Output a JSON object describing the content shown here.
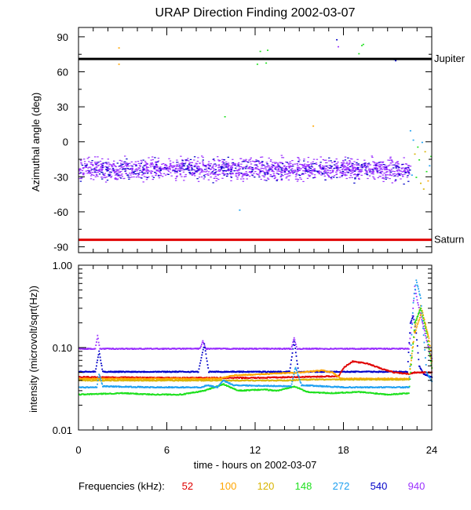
{
  "title": "URAP Direction Finding  2002-03-07",
  "x_axis": {
    "label": "time - hours on 2002-03-07",
    "range": [
      0,
      24
    ],
    "ticks": [
      0,
      6,
      12,
      18,
      24
    ]
  },
  "legend": {
    "label": "Frequencies (kHz):",
    "items": [
      {
        "value": "52",
        "color": "#e00000"
      },
      {
        "value": "100",
        "color": "#ffa500"
      },
      {
        "value": "120",
        "color": "#d8b400"
      },
      {
        "value": "148",
        "color": "#1ee01e"
      },
      {
        "value": "272",
        "color": "#1ea0f0"
      },
      {
        "value": "540",
        "color": "#0000c8"
      },
      {
        "value": "940",
        "color": "#9b30ff"
      }
    ]
  },
  "chart_data": [
    {
      "type": "scatter",
      "panel": "azimuth",
      "ylabel": "Azimuthal angle (deg)",
      "ylim": [
        -95,
        98
      ],
      "yticks": [
        90,
        60,
        30,
        0,
        -30,
        -60,
        -90
      ],
      "reference_lines": [
        {
          "label": "Jupiter",
          "y": 71,
          "color": "#000000"
        },
        {
          "label": "Saturn",
          "y": -84,
          "color": "#e00000"
        }
      ],
      "series": [
        {
          "frequency": "940",
          "color": "#9b30ff",
          "band": {
            "x": [
              0,
              22.5
            ],
            "center": -23,
            "spread": 9
          }
        },
        {
          "frequency": "540",
          "color": "#0000c8",
          "band": {
            "x": [
              0,
              22.5
            ],
            "center": -23,
            "spread": 10
          }
        }
      ],
      "points": [
        {
          "x": 2.7,
          "y": 81,
          "color": "#ffa500"
        },
        {
          "x": 2.7,
          "y": 67,
          "color": "#ffa500"
        },
        {
          "x": 12.3,
          "y": 78,
          "color": "#1ee01e"
        },
        {
          "x": 12.5,
          "y": 72,
          "color": "#1ee01e"
        },
        {
          "x": 12.1,
          "y": 67,
          "color": "#1ee01e"
        },
        {
          "x": 12.7,
          "y": 68,
          "color": "#1ee01e"
        },
        {
          "x": 12.8,
          "y": 79,
          "color": "#1ee01e"
        },
        {
          "x": 17.5,
          "y": 88,
          "color": "#0000c8"
        },
        {
          "x": 17.6,
          "y": 82,
          "color": "#9b30ff"
        },
        {
          "x": 19.2,
          "y": 83,
          "color": "#1ee01e"
        },
        {
          "x": 19.3,
          "y": 84,
          "color": "#1ee01e"
        },
        {
          "x": 19.0,
          "y": 76,
          "color": "#1ee01e"
        },
        {
          "x": 21.4,
          "y": 71,
          "color": "#1ea0f0"
        },
        {
          "x": 21.5,
          "y": 70,
          "color": "#0000c8"
        },
        {
          "x": 9.9,
          "y": 22,
          "color": "#1ee01e"
        },
        {
          "x": 15.9,
          "y": 14,
          "color": "#ffa500"
        },
        {
          "x": 10.9,
          "y": -58,
          "color": "#1ea0f0"
        },
        {
          "x": 22.5,
          "y": 10,
          "color": "#1ea0f0"
        },
        {
          "x": 22.7,
          "y": 2,
          "color": "#1ea0f0"
        },
        {
          "x": 23.0,
          "y": -4,
          "color": "#1ee01e"
        },
        {
          "x": 23.3,
          "y": 0,
          "color": "#1ea0f0"
        },
        {
          "x": 22.8,
          "y": -10,
          "color": "#d8b400"
        },
        {
          "x": 23.1,
          "y": -15,
          "color": "#1ee01e"
        },
        {
          "x": 23.5,
          "y": -8,
          "color": "#d8b400"
        },
        {
          "x": 22.9,
          "y": -30,
          "color": "#1ee01e"
        },
        {
          "x": 23.2,
          "y": -35,
          "color": "#d8b400"
        },
        {
          "x": 23.4,
          "y": -40,
          "color": "#d8b400"
        },
        {
          "x": 23.6,
          "y": -25,
          "color": "#1ee01e"
        },
        {
          "x": 23.8,
          "y": -20,
          "color": "#1ea0f0"
        },
        {
          "x": 23.7,
          "y": -33,
          "color": "#ffa500"
        },
        {
          "x": 22.6,
          "y": -28,
          "color": "#1ea0f0"
        },
        {
          "x": 23.9,
          "y": -12,
          "color": "#1ee01e"
        }
      ]
    },
    {
      "type": "line",
      "panel": "intensity",
      "ylabel": "intensity (microvolt/sqrt(Hz))",
      "yscale": "log",
      "ylim": [
        0.01,
        1.0
      ],
      "ytick_labels": [
        "1.00",
        "0.10",
        "0.01"
      ],
      "series": [
        {
          "frequency": "940",
          "color": "#9b30ff",
          "x": [
            0,
            1.1,
            1.25,
            1.4,
            8.2,
            8.4,
            8.6,
            14.4,
            14.6,
            14.8,
            17.7,
            22.4,
            22.6,
            22.8,
            23.0,
            23.2,
            23.5,
            23.8,
            24
          ],
          "y": [
            0.097,
            0.097,
            0.14,
            0.097,
            0.097,
            0.12,
            0.097,
            0.097,
            0.13,
            0.097,
            0.097,
            0.097,
            0.2,
            0.55,
            0.35,
            0.25,
            0.15,
            0.09,
            0.07
          ]
        },
        {
          "frequency": "540",
          "color": "#0000c8",
          "x": [
            0,
            1.1,
            1.35,
            1.6,
            8.1,
            8.5,
            8.8,
            14.3,
            14.6,
            14.9,
            22.3,
            22.5,
            22.7,
            22.9,
            23.1,
            23.4,
            23.7,
            24
          ],
          "y": [
            0.051,
            0.051,
            0.09,
            0.051,
            0.051,
            0.11,
            0.051,
            0.051,
            0.12,
            0.051,
            0.051,
            0.2,
            0.24,
            0.15,
            0.06,
            0.048,
            0.045,
            0.044
          ]
        },
        {
          "frequency": "52",
          "color": "#e00000",
          "x": [
            0,
            6,
            12,
            17.6,
            18.0,
            18.6,
            19.6,
            20.6,
            21.4,
            22.4,
            22.8,
            23.4,
            24
          ],
          "y": [
            0.044,
            0.043,
            0.043,
            0.045,
            0.058,
            0.068,
            0.064,
            0.055,
            0.05,
            0.048,
            0.05,
            0.05,
            0.05
          ]
        },
        {
          "frequency": "100",
          "color": "#ffa500",
          "x": [
            0,
            9.5,
            10.5,
            15.0,
            16.5,
            17.2,
            17.8,
            22.4,
            22.8,
            23.3,
            23.8,
            24
          ],
          "y": [
            0.042,
            0.042,
            0.046,
            0.05,
            0.053,
            0.05,
            0.042,
            0.042,
            0.15,
            0.28,
            0.12,
            0.06
          ]
        },
        {
          "frequency": "120",
          "color": "#d8b400",
          "x": [
            0,
            14.5,
            15.0,
            22.4,
            22.8,
            23.2,
            23.7,
            24
          ],
          "y": [
            0.04,
            0.04,
            0.041,
            0.041,
            0.18,
            0.32,
            0.14,
            0.05
          ]
        },
        {
          "frequency": "148",
          "color": "#1ee01e",
          "x": [
            0,
            3,
            5,
            7,
            8.5,
            9.8,
            10.8,
            12.5,
            13.5,
            14.6,
            15.5,
            17,
            19,
            21,
            22.4,
            22.8,
            23.2,
            23.6,
            24
          ],
          "y": [
            0.027,
            0.028,
            0.027,
            0.027,
            0.03,
            0.036,
            0.03,
            0.031,
            0.03,
            0.034,
            0.029,
            0.028,
            0.029,
            0.027,
            0.028,
            0.2,
            0.3,
            0.15,
            0.05
          ]
        },
        {
          "frequency": "272",
          "color": "#1ea0f0",
          "x": [
            0,
            1.2,
            1.35,
            1.6,
            5,
            8.3,
            8.7,
            9.4,
            9.8,
            10.5,
            14.4,
            14.7,
            15.1,
            18,
            21,
            22.4,
            22.7,
            22.9,
            23.2,
            23.6,
            24
          ],
          "y": [
            0.033,
            0.033,
            0.048,
            0.034,
            0.033,
            0.033,
            0.035,
            0.033,
            0.04,
            0.035,
            0.034,
            0.058,
            0.035,
            0.033,
            0.033,
            0.033,
            0.35,
            0.65,
            0.4,
            0.05,
            0.038
          ]
        }
      ]
    }
  ]
}
